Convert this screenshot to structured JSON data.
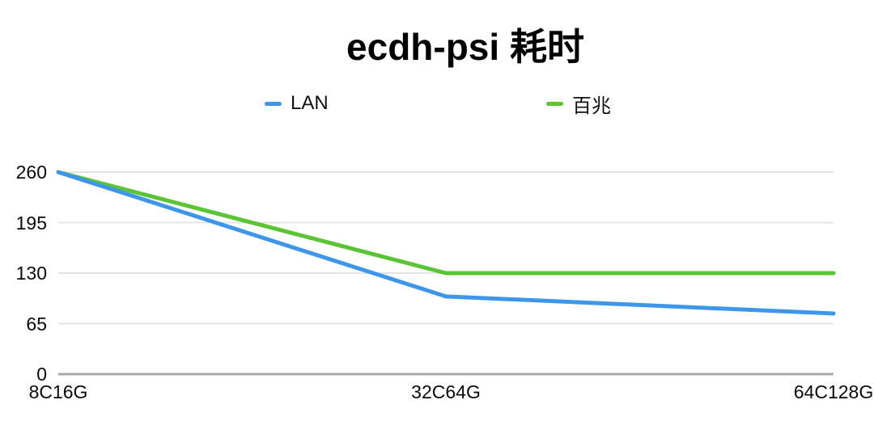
{
  "chart_data": {
    "type": "line",
    "title": "ecdh-psi 耗时",
    "categories": [
      "8C16G",
      "32C64G",
      "64C128G"
    ],
    "series": [
      {
        "name": "LAN",
        "color": "#3E96E8",
        "values": [
          260,
          100,
          78
        ]
      },
      {
        "name": "百兆",
        "color": "#5BC436",
        "values": [
          260,
          130,
          130
        ]
      }
    ],
    "xlabel": "",
    "ylabel": "",
    "ylim": [
      0,
      260
    ],
    "yticks": [
      0,
      65,
      130,
      195,
      260
    ],
    "grid": true,
    "grid_color": "#e4e4e4",
    "baseline_color": "#a8a8a8",
    "legend_position": "top"
  }
}
